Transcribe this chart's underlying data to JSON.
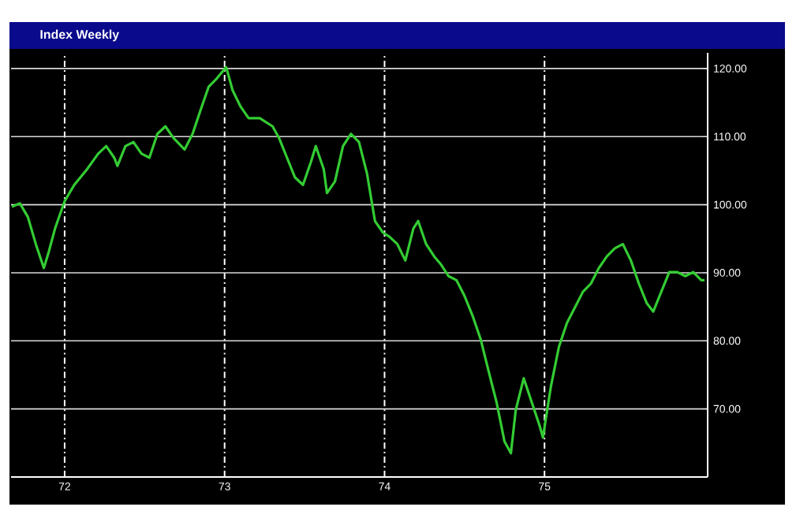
{
  "chart_data": {
    "type": "line",
    "title": "Index Weekly",
    "x": [
      1971.67,
      1971.72,
      1971.77,
      1971.82,
      1971.87,
      1971.9,
      1971.94,
      1972.0,
      1972.06,
      1972.14,
      1972.21,
      1972.26,
      1972.31,
      1972.33,
      1972.38,
      1972.43,
      1972.48,
      1972.53,
      1972.58,
      1972.63,
      1972.68,
      1972.75,
      1972.8,
      1972.85,
      1972.9,
      1972.95,
      1973.01,
      1973.05,
      1973.1,
      1973.15,
      1973.22,
      1973.3,
      1973.34,
      1973.39,
      1973.44,
      1973.49,
      1973.54,
      1973.57,
      1973.62,
      1973.64,
      1973.69,
      1973.74,
      1973.79,
      1973.84,
      1973.89,
      1973.94,
      1973.99,
      1974.03,
      1974.08,
      1974.13,
      1974.18,
      1974.21,
      1974.26,
      1974.31,
      1974.35,
      1974.4,
      1974.45,
      1974.5,
      1974.55,
      1974.6,
      1974.65,
      1974.7,
      1974.75,
      1974.79,
      1974.82,
      1974.87,
      1974.92,
      1974.97,
      1974.99,
      1975.04,
      1975.09,
      1975.14,
      1975.19,
      1975.24,
      1975.29,
      1975.34,
      1975.39,
      1975.44,
      1975.49,
      1975.54,
      1975.59,
      1975.64,
      1975.68,
      1975.73,
      1975.78,
      1975.83,
      1975.88,
      1975.93,
      1975.98,
      1976.0
    ],
    "series": [
      {
        "color": "#33cc33",
        "values": [
          99.7,
          100.2,
          98.2,
          94.2,
          90.7,
          93.0,
          96.5,
          100.5,
          102.9,
          105.2,
          107.5,
          108.6,
          106.9,
          105.7,
          108.6,
          109.2,
          107.5,
          106.9,
          110.4,
          111.5,
          109.8,
          108.1,
          110.4,
          113.9,
          117.3,
          118.5,
          120.2,
          116.8,
          114.4,
          112.7,
          112.7,
          111.5,
          109.8,
          106.9,
          104.0,
          102.9,
          106.3,
          108.6,
          105.2,
          101.7,
          103.4,
          108.6,
          110.4,
          109.2,
          104.6,
          97.6,
          95.9,
          95.3,
          94.2,
          91.8,
          96.5,
          97.6,
          94.2,
          92.4,
          91.3,
          89.5,
          88.9,
          86.6,
          83.7,
          80.3,
          75.6,
          71.0,
          65.2,
          63.5,
          69.8,
          74.5,
          71.0,
          67.5,
          65.8,
          73.3,
          79.1,
          82.6,
          84.9,
          87.2,
          88.4,
          90.7,
          92.4,
          93.6,
          94.2,
          91.8,
          88.4,
          85.5,
          84.3,
          87.2,
          90.1,
          90.1,
          89.5,
          90.1,
          88.9,
          88.9
        ]
      }
    ],
    "xlim": [
      1971.665,
      1976.02
    ],
    "ylim": [
      60,
      122.3
    ],
    "xticks": [
      {
        "value": 1972,
        "label": "72"
      },
      {
        "value": 1973,
        "label": "73"
      },
      {
        "value": 1974,
        "label": "74"
      },
      {
        "value": 1975,
        "label": "75"
      }
    ],
    "yticks": [
      {
        "value": 70,
        "label": "70.00"
      },
      {
        "value": 80,
        "label": "80.00"
      },
      {
        "value": 90,
        "label": "90.00"
      },
      {
        "value": 100,
        "label": "100.00"
      },
      {
        "value": 110,
        "label": "110.00"
      },
      {
        "value": 120,
        "label": "120.00"
      }
    ],
    "grid": true,
    "line_style": "solid"
  }
}
